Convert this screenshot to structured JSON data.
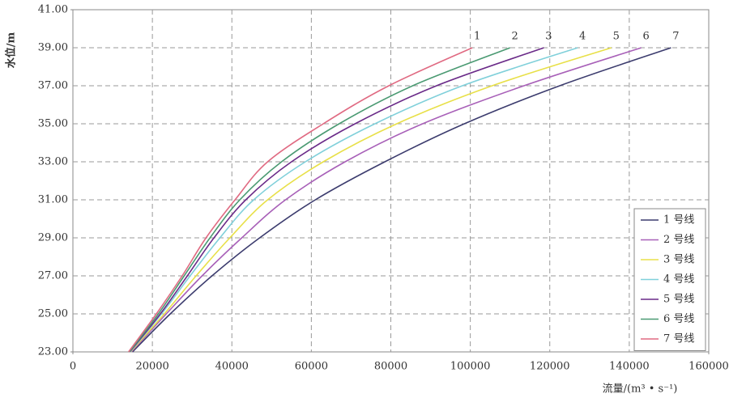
{
  "chart_data": {
    "type": "line",
    "xlabel": "流量/(m³ • s⁻¹)",
    "ylabel": "水位/m",
    "xlim": [
      0,
      160000
    ],
    "xticks": [
      0,
      20000,
      40000,
      60000,
      80000,
      100000,
      120000,
      140000,
      160000
    ],
    "ylim": [
      23,
      41
    ],
    "yticks": [
      {
        "value": 23,
        "label": "23.00"
      },
      {
        "value": 25,
        "label": "25.00"
      },
      {
        "value": 27,
        "label": "27.00"
      },
      {
        "value": 29,
        "label": "29.00"
      },
      {
        "value": 31,
        "label": "31.00"
      },
      {
        "value": 33,
        "label": "33.00"
      },
      {
        "value": 35,
        "label": "35.00"
      },
      {
        "value": 37,
        "label": "37.00"
      },
      {
        "value": 39,
        "label": "39.00"
      },
      {
        "value": 41,
        "label": "41.00"
      }
    ],
    "grid": true,
    "legend": "lower right",
    "end_labels": [
      "1",
      "2",
      "3",
      "4",
      "5",
      "6",
      "7"
    ],
    "series": [
      {
        "name": "1 号线",
        "color": "#3c3c6e",
        "x": [
          15000,
          24500,
          35000,
          47000,
          61000,
          78500,
          98500,
          122500,
          150500
        ],
        "values": [
          23,
          25,
          27,
          29,
          31,
          33,
          35,
          37,
          39
        ]
      },
      {
        "name": "2 号线",
        "color": "#a860b8",
        "x": [
          14700,
          23500,
          32500,
          42500,
          53500,
          68500,
          88000,
          113500,
          143000
        ],
        "values": [
          23,
          25,
          27,
          29,
          31,
          33,
          35,
          37,
          39
        ]
      },
      {
        "name": "3 号线",
        "color": "#e8e048",
        "x": [
          14500,
          23000,
          31000,
          39500,
          49000,
          63000,
          81500,
          105500,
          135500
        ],
        "values": [
          23,
          25,
          27,
          29,
          31,
          33,
          35,
          37,
          39
        ]
      },
      {
        "name": "4 号线",
        "color": "#80d0da",
        "x": [
          14400,
          22300,
          29500,
          37000,
          45500,
          58500,
          76000,
          98000,
          127000
        ],
        "values": [
          23,
          25,
          27,
          29,
          31,
          33,
          35,
          37,
          39
        ]
      },
      {
        "name": "5 号线",
        "color": "#6a2a88",
        "x": [
          14300,
          22000,
          28800,
          35500,
          43500,
          55000,
          71000,
          91500,
          118500
        ],
        "values": [
          23,
          25,
          27,
          29,
          31,
          33,
          35,
          37,
          39
        ]
      },
      {
        "name": "6 号线",
        "color": "#4a9a72",
        "x": [
          14200,
          21500,
          28000,
          34500,
          42000,
          52500,
          67000,
          85500,
          110000
        ],
        "values": [
          23,
          25,
          27,
          29,
          31,
          33,
          35,
          37,
          39
        ]
      },
      {
        "name": "7 号线",
        "color": "#e06a82",
        "x": [
          14000,
          21000,
          27500,
          33500,
          40800,
          49000,
          63000,
          79500,
          100500
        ],
        "values": [
          23,
          25,
          27,
          29,
          31,
          33,
          35,
          37,
          39
        ]
      }
    ]
  }
}
